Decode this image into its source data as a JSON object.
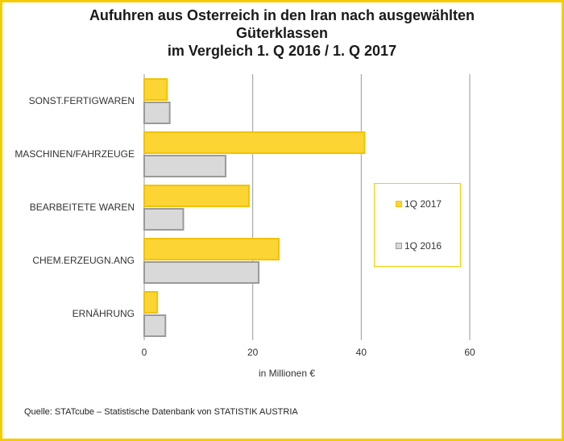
{
  "title_lines": [
    "Aufuhren aus Osterreich in den Iran nach ausgewählten",
    "Güterklassen",
    "im Vergleich 1. Q 2016 / 1. Q 2017"
  ],
  "source": "Quelle: STATcube – Statistische Datenbank von STATISTIK AUSTRIA",
  "colors": {
    "frame": "#f5cc00",
    "series_2017_fill": "#fcd535",
    "series_2017_stroke": "#f2c200",
    "series_2016_fill": "#d9d9d9",
    "series_2016_stroke": "#9a9a9a",
    "grid": "#9a9a9a"
  },
  "chart_data": {
    "type": "bar",
    "orientation": "horizontal",
    "title": "Aufuhren aus Osterreich in den Iran nach ausgewählten Güterklassen im Vergleich 1. Q 2016 / 1. Q 2017",
    "xlabel": "in Millionen €",
    "ylabel": "",
    "xlim": [
      0,
      60
    ],
    "xticks": [
      0,
      20,
      40,
      60
    ],
    "grid": true,
    "legend_position": "right",
    "categories": [
      "SONST.FERTIGWAREN",
      "MASCHINEN/FAHRZEUGE",
      "BEARBEITETE WAREN",
      "CHEM.ERZEUGN.ANG",
      "ERNÄHRUNG"
    ],
    "series": [
      {
        "name": "1Q 2017",
        "values": [
          4.2,
          40.6,
          19.3,
          24.8,
          2.4
        ]
      },
      {
        "name": "1Q 2016",
        "values": [
          4.7,
          15.0,
          7.2,
          21.1,
          3.9
        ]
      }
    ]
  }
}
